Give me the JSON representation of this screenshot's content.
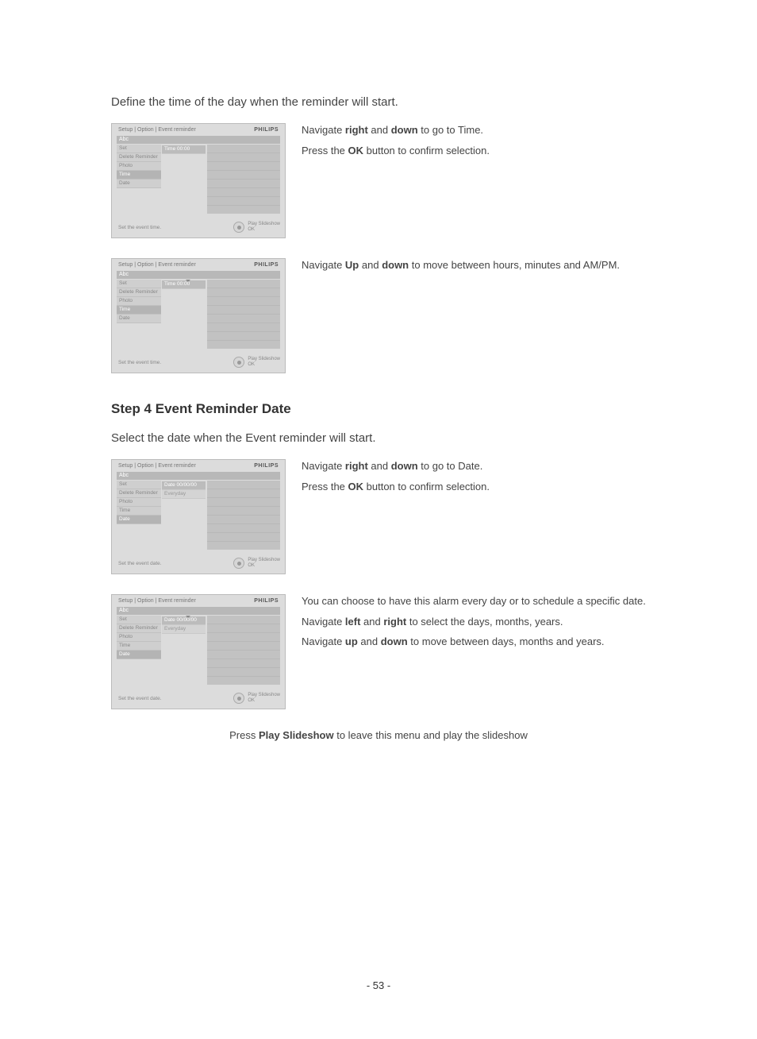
{
  "intro_time": "Define the time of the day when the reminder will start.",
  "section2_heading": "Step 4 Event Reminder Date",
  "intro_date": "Select the date when the Event reminder will start.",
  "footer_note_pre": "Press ",
  "footer_note_bold": "Play Slideshow",
  "footer_note_post": " to leave this menu and play the slideshow",
  "page_number": "- 53 -",
  "brand": "PHILIPS",
  "breadcrumb": "Setup | Option | Event reminder",
  "bar_label": "Abc",
  "menu_items": [
    "Set",
    "Delete Reminder",
    "Photo",
    "Time",
    "Date"
  ],
  "shots": [
    {
      "left_hl_index": 3,
      "sub": [
        {
          "l": "Time",
          "v": "00:00",
          "hl": true
        }
      ],
      "cursor": false,
      "footer_hint": "Set the event time.",
      "right1": "Play Slideshow",
      "right2": "OK"
    },
    {
      "left_hl_index": 3,
      "sub": [
        {
          "l": "Time",
          "v": "00:00",
          "hl": true
        }
      ],
      "cursor": true,
      "footer_hint": "Set the event time.",
      "right1": "Play Slideshow",
      "right2": "OK"
    },
    {
      "left_hl_index": 4,
      "sub": [
        {
          "l": "Date",
          "v": "00/00/00",
          "hl": true
        },
        {
          "l": "Everyday",
          "v": "",
          "hl": false
        }
      ],
      "cursor": false,
      "footer_hint": "Set the event date.",
      "right1": "Play Slideshow",
      "right2": "OK"
    },
    {
      "left_hl_index": 4,
      "sub": [
        {
          "l": "Date",
          "v": "00/00/00",
          "hl": true
        },
        {
          "l": "Everyday",
          "v": "",
          "hl": false
        }
      ],
      "cursor": true,
      "footer_hint": "Set the event date.",
      "right1": "Play Slideshow",
      "right2": "OK"
    }
  ],
  "instr": {
    "r1": {
      "p1_a": "Navigate ",
      "p1_b1": "right",
      "p1_m": " and ",
      "p1_b2": "down",
      "p1_c": " to go to Time.",
      "p2_a": "Press the ",
      "p2_b": "OK",
      "p2_c": " button to confirm selection."
    },
    "r2": {
      "p1_a": "Navigate ",
      "p1_b1": "Up",
      "p1_m": " and  ",
      "p1_b2": "down",
      "p1_c": " to move between hours, minutes and AM/PM."
    },
    "r3": {
      "p1_a": "Navigate ",
      "p1_b1": "right",
      "p1_m": " and ",
      "p1_b2": "down",
      "p1_c": " to go to Date.",
      "p2_a": "Press the ",
      "p2_b": "OK",
      "p2_c": " button to confirm selection."
    },
    "r4": {
      "p1": "You can choose to have this alarm every day or to schedule a specific date.",
      "p2_a": "Navigate ",
      "p2_b1": "left",
      "p2_m": " and ",
      "p2_b2": "right",
      "p2_c": " to select the days, months, years.",
      "p3_a": "Navigate ",
      "p3_b1": "up",
      "p3_m": " and ",
      "p3_b2": "down",
      "p3_c": " to move between days, months and years."
    }
  }
}
